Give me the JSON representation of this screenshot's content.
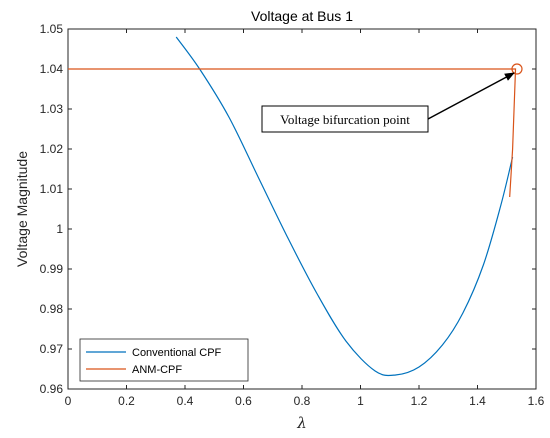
{
  "chart_data": {
    "type": "line",
    "title": "Voltage at Bus 1",
    "xlabel": "λ",
    "ylabel": "Voltage Magnitude",
    "xlim": [
      0,
      1.6
    ],
    "ylim": [
      0.96,
      1.05
    ],
    "xticks": [
      "0",
      "0.2",
      "0.4",
      "0.6",
      "0.8",
      "1",
      "1.2",
      "1.4",
      "1.6"
    ],
    "yticks": [
      "0.96",
      "0.97",
      "0.98",
      "0.99",
      "1",
      "1.01",
      "1.02",
      "1.03",
      "1.04",
      "1.05"
    ],
    "grid": false,
    "legend_position": "bottom-left",
    "series": [
      {
        "name": "Conventional CPF",
        "color": "#0072BD",
        "x": [
          0.37,
          0.45,
          0.55,
          0.65,
          0.75,
          0.85,
          0.95,
          1.05,
          1.12,
          1.2,
          1.28,
          1.35,
          1.42,
          1.48,
          1.52
        ],
        "y": [
          1.048,
          1.04,
          1.028,
          1.013,
          0.998,
          0.984,
          0.972,
          0.9645,
          0.9635,
          0.9655,
          0.971,
          0.979,
          0.991,
          1.006,
          1.018
        ]
      },
      {
        "name": "ANM-CPF",
        "color": "#D95319",
        "x": [
          0,
          1.53,
          1.525,
          1.52,
          1.51
        ],
        "y": [
          1.04,
          1.04,
          1.03,
          1.02,
          1.008
        ]
      }
    ],
    "annotations": [
      {
        "text": "Voltage bifurcation point",
        "x": 1.535,
        "y": 1.04
      }
    ]
  }
}
